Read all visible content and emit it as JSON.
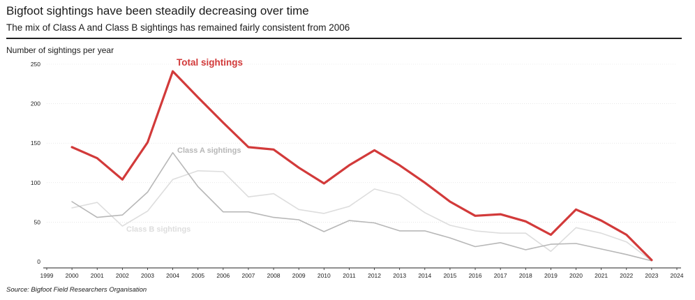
{
  "chart_data": {
    "type": "line",
    "title": "Bigfoot sightings have been steadily decreasing over time",
    "subtitle": "The mix of Class A and Class B sightings has remained fairly consistent from 2006",
    "ylabel": "Number of sightings per year",
    "xlabel": "",
    "source": "Source: Bigfoot Field Researchers Organisation",
    "x": [
      2000,
      2001,
      2002,
      2003,
      2004,
      2005,
      2006,
      2007,
      2008,
      2009,
      2010,
      2011,
      2012,
      2013,
      2014,
      2015,
      2016,
      2017,
      2018,
      2019,
      2020,
      2021,
      2022,
      2023
    ],
    "x_ticks": [
      "1999",
      "2000",
      "2001",
      "2002",
      "2003",
      "2004",
      "2005",
      "2006",
      "2007",
      "2008",
      "2009",
      "2010",
      "2011",
      "2012",
      "2013",
      "2014",
      "2015",
      "2016",
      "2017",
      "2018",
      "2019",
      "2020",
      "2021",
      "2022",
      "2023",
      "2024"
    ],
    "xlim": [
      1999,
      2024
    ],
    "ylim": [
      0,
      250
    ],
    "y_ticks": [
      "0",
      "50",
      "100",
      "150",
      "200",
      "250"
    ],
    "grid": "horizontal",
    "series": [
      {
        "name": "Class B sightings",
        "color": "#dddddd",
        "values": [
          68,
          75,
          45,
          64,
          104,
          115,
          114,
          82,
          86,
          66,
          61,
          70,
          92,
          84,
          62,
          46,
          39,
          36,
          36,
          13,
          43,
          36,
          25,
          1
        ]
      },
      {
        "name": "Class A sightings",
        "color": "#b7b7b7",
        "values": [
          76,
          56,
          59,
          88,
          138,
          95,
          63,
          63,
          56,
          53,
          38,
          52,
          49,
          39,
          39,
          30,
          19,
          24,
          15,
          22,
          23,
          16,
          9,
          1
        ]
      },
      {
        "name": "Total sightings",
        "color": "#d23a3a",
        "values": [
          145,
          131,
          104,
          151,
          241,
          208,
          176,
          145,
          142,
          119,
          99,
          122,
          141,
          122,
          100,
          76,
          58,
          60,
          51,
          34,
          66,
          52,
          34,
          2
        ]
      }
    ]
  }
}
